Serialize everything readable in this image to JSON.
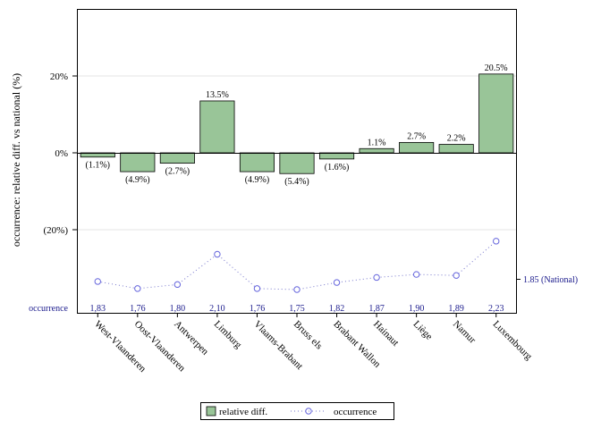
{
  "chart_data": {
    "type": "bar",
    "ylabel": "occurrence: relative diff. vs national (%)",
    "categories": [
      "West-Vlaanderen",
      "Oost-Vlaanderen",
      "Antwerpen",
      "Limburg",
      "Vlaams-Brabant",
      "Bruss els",
      "Brabant Wallon",
      "Hainaut",
      "Liège",
      "Namur",
      "Luxembourg"
    ],
    "series": [
      {
        "name": "relative diff.",
        "values": [
          -1.1,
          -4.9,
          -2.7,
          13.5,
          -4.9,
          -5.4,
          -1.6,
          1.1,
          2.7,
          2.2,
          20.5
        ],
        "labels": [
          "(1.1%)",
          "(4.9%)",
          "(2.7%)",
          "13.5%",
          "(4.9%)",
          "(5.4%)",
          "(1.6%)",
          "1.1%",
          "2.7%",
          "2.2%",
          "20.5%"
        ],
        "color": "#99c598"
      },
      {
        "name": "occurrence",
        "values": [
          1.83,
          1.76,
          1.8,
          2.1,
          1.76,
          1.75,
          1.82,
          1.87,
          1.9,
          1.89,
          2.23
        ],
        "labels": [
          "1,83",
          "1,76",
          "1,80",
          "2,10",
          "1,76",
          "1,75",
          "1,82",
          "1,87",
          "1,90",
          "1,89",
          "2,23"
        ],
        "color": "#3333aa"
      }
    ],
    "yticks": [
      "20%",
      "0%",
      "(20%)"
    ],
    "ylim": [
      -40,
      38
    ],
    "national_label": "1.85 (National)",
    "row_label": "occurrence",
    "grid": true,
    "legend_position": "bottom"
  }
}
